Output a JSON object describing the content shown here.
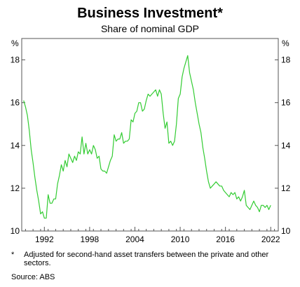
{
  "chart_data": {
    "type": "line",
    "title": "Business Investment*",
    "subtitle": "Share of nominal GDP",
    "unit_left": "%",
    "unit_right": "%",
    "ylim": [
      10,
      19
    ],
    "y_ticks": [
      "10",
      "12",
      "14",
      "16",
      "18"
    ],
    "x_ticks": [
      "1992",
      "1998",
      "2004",
      "2010",
      "2016",
      "2022"
    ],
    "xlim": [
      1989.5,
      2023.5
    ],
    "grid": false,
    "line_color": "#33cc33",
    "series": [
      {
        "x": [
          1989.75,
          1990.0,
          1990.25,
          1990.5,
          1990.75,
          1991.0,
          1991.25,
          1991.5,
          1991.75,
          1992.0,
          1992.25,
          1992.5,
          1992.75,
          1993.0,
          1993.25,
          1993.5,
          1993.75,
          1994.0,
          1994.25,
          1994.5,
          1994.75,
          1995.0,
          1995.25,
          1995.5,
          1995.75,
          1996.0,
          1996.25,
          1996.5,
          1996.75,
          1997.0,
          1997.25,
          1997.5,
          1997.75,
          1998.0,
          1998.25,
          1998.5,
          1998.75,
          1999.0,
          1999.25,
          1999.5,
          1999.75,
          2000.0,
          2000.25,
          2000.5,
          2000.75,
          2001.0,
          2001.25,
          2001.5,
          2001.75,
          2002.0,
          2002.25,
          2002.5,
          2002.75,
          2003.0,
          2003.25,
          2003.5,
          2003.75,
          2004.0,
          2004.25,
          2004.5,
          2004.75,
          2005.0,
          2005.25,
          2005.5,
          2005.75,
          2006.0,
          2006.25,
          2006.5,
          2006.75,
          2007.0,
          2007.25,
          2007.5,
          2007.75,
          2008.0,
          2008.25,
          2008.5,
          2008.75,
          2009.0,
          2009.25,
          2009.5,
          2009.75,
          2010.0,
          2010.25,
          2010.5,
          2010.75,
          2011.0,
          2011.25,
          2011.5,
          2011.75,
          2012.0,
          2012.25,
          2012.5,
          2012.75,
          2013.0,
          2013.25,
          2013.5,
          2013.75,
          2014.0,
          2014.25,
          2014.5,
          2014.75,
          2015.0,
          2015.25,
          2015.5,
          2015.75,
          2016.0,
          2016.25,
          2016.5,
          2016.75,
          2017.0,
          2017.25,
          2017.5,
          2017.75,
          2018.0,
          2018.25,
          2018.5,
          2018.75,
          2019.0,
          2019.25,
          2019.5,
          2019.75,
          2020.0,
          2020.25,
          2020.5,
          2020.75,
          2021.0,
          2021.25,
          2021.5,
          2021.75,
          2022.0,
          2022.25,
          2022.5
        ],
        "values": [
          16.1,
          15.8,
          15.4,
          14.7,
          13.8,
          13.2,
          12.5,
          11.9,
          11.4,
          10.8,
          10.9,
          10.6,
          10.6,
          11.7,
          11.3,
          11.3,
          11.5,
          11.5,
          12.2,
          12.6,
          13.1,
          12.8,
          13.3,
          13.0,
          13.6,
          13.4,
          13.2,
          13.5,
          13.3,
          13.7,
          13.6,
          14.4,
          13.6,
          14.1,
          13.6,
          13.8,
          13.6,
          14.0,
          13.8,
          13.4,
          13.5,
          12.9,
          12.8,
          12.8,
          12.7,
          13.0,
          13.3,
          13.5,
          14.5,
          14.2,
          14.3,
          14.3,
          14.6,
          14.1,
          14.2,
          14.2,
          14.3,
          15.2,
          15.1,
          15.5,
          15.6,
          16.0,
          16.0,
          15.6,
          15.7,
          16.1,
          16.4,
          16.3,
          16.4,
          16.5,
          16.6,
          16.3,
          16.6,
          16.4,
          15.5,
          14.8,
          15.1,
          14.1,
          14.2,
          14.0,
          14.2,
          15.0,
          16.2,
          16.4,
          17.2,
          17.6,
          17.9,
          18.2,
          17.4,
          17.0,
          16.6,
          16.0,
          15.5,
          15.0,
          14.6,
          13.9,
          13.4,
          12.8,
          12.3,
          12.0,
          12.1,
          12.2,
          12.3,
          12.2,
          12.1,
          12.1,
          11.9,
          11.8,
          11.7,
          11.6,
          11.8,
          11.7,
          11.8,
          11.5,
          11.6,
          11.4,
          11.6,
          11.9,
          11.2,
          11.1,
          11.0,
          11.2,
          11.4,
          11.2,
          11.1,
          10.9,
          11.2,
          11.2,
          11.1,
          11.2,
          11.0,
          11.2
        ]
      }
    ]
  },
  "footnote_mark": "*",
  "footnote_text": "Adjusted for second-hand asset transfers between the private and other sectors.",
  "source_text": "Source:   ABS"
}
